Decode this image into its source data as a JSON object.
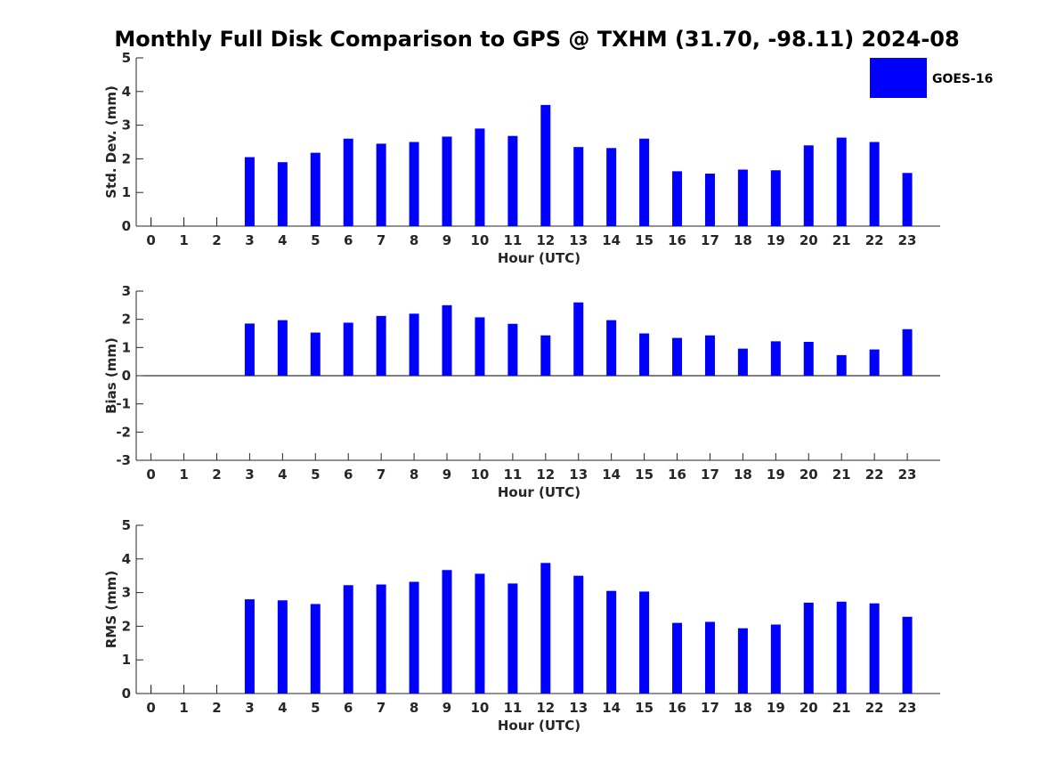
{
  "figure": {
    "title": "Monthly Full Disk Comparison to GPS @ TXHM (31.70, -98.11) 2024-08"
  },
  "legend": {
    "label": "GOES-16",
    "color": "#0000ff"
  },
  "chart_data": [
    {
      "type": "bar",
      "id": "std",
      "ylabel": "Std. Dev. (mm)",
      "xlabel": "Hour (UTC)",
      "categories": [
        "0",
        "1",
        "2",
        "3",
        "4",
        "5",
        "6",
        "7",
        "8",
        "9",
        "10",
        "11",
        "12",
        "13",
        "14",
        "15",
        "16",
        "17",
        "18",
        "19",
        "20",
        "21",
        "22",
        "23"
      ],
      "values": [
        null,
        null,
        null,
        2.05,
        1.9,
        2.18,
        2.6,
        2.45,
        2.5,
        2.66,
        2.9,
        2.68,
        3.6,
        2.35,
        2.32,
        2.6,
        1.63,
        1.56,
        1.68,
        1.66,
        2.4,
        2.63,
        2.5,
        1.58
      ],
      "ylim": [
        0,
        5
      ],
      "yticks": [
        "0",
        "1",
        "2",
        "3",
        "4",
        "5"
      ],
      "empty_markers": true
    },
    {
      "type": "bar",
      "id": "bias",
      "ylabel": "Bias (mm)",
      "xlabel": "Hour (UTC)",
      "categories": [
        "0",
        "1",
        "2",
        "3",
        "4",
        "5",
        "6",
        "7",
        "8",
        "9",
        "10",
        "11",
        "12",
        "13",
        "14",
        "15",
        "16",
        "17",
        "18",
        "19",
        "20",
        "21",
        "22",
        "23"
      ],
      "values": [
        null,
        null,
        null,
        1.85,
        1.97,
        1.53,
        1.88,
        2.12,
        2.2,
        2.5,
        2.07,
        1.84,
        1.43,
        2.6,
        1.97,
        1.5,
        1.34,
        1.43,
        0.96,
        1.22,
        1.2,
        0.73,
        0.93,
        1.65
      ],
      "ylim": [
        -3,
        3
      ],
      "yticks": [
        "-3",
        "-2",
        "-1",
        "0",
        "1",
        "2",
        "3"
      ],
      "zero_line": true,
      "empty_markers": false
    },
    {
      "type": "bar",
      "id": "rms",
      "ylabel": "RMS (mm)",
      "xlabel": "Hour (UTC)",
      "categories": [
        "0",
        "1",
        "2",
        "3",
        "4",
        "5",
        "6",
        "7",
        "8",
        "9",
        "10",
        "11",
        "12",
        "13",
        "14",
        "15",
        "16",
        "17",
        "18",
        "19",
        "20",
        "21",
        "22",
        "23"
      ],
      "values": [
        null,
        null,
        null,
        2.8,
        2.77,
        2.66,
        3.22,
        3.24,
        3.32,
        3.67,
        3.56,
        3.27,
        3.88,
        3.5,
        3.05,
        3.03,
        2.1,
        2.13,
        1.94,
        2.05,
        2.7,
        2.73,
        2.68,
        2.28
      ],
      "ylim": [
        0,
        5
      ],
      "yticks": [
        "0",
        "1",
        "2",
        "3",
        "4",
        "5"
      ],
      "empty_markers": true
    }
  ]
}
